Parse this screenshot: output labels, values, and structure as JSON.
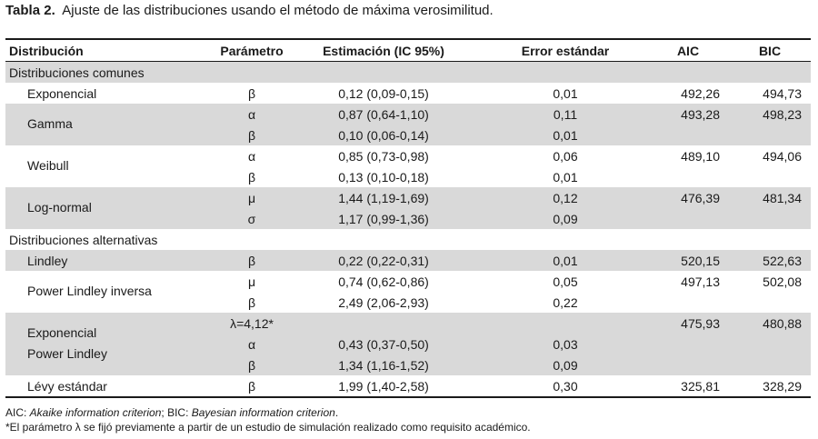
{
  "caption": {
    "label": "Tabla 2.",
    "text": "Ajuste de las distribuciones usando el método de máxima verosimilitud."
  },
  "header": {
    "distribucion": "Distribución",
    "parametro": "Parámetro",
    "estimacion": "Estimación (IC 95%)",
    "error": "Error estándar",
    "aic": "AIC",
    "bic": "BIC"
  },
  "sections": {
    "comunes": "Distribuciones comunes",
    "alternativas": "Distribuciones alternativas"
  },
  "rows": {
    "exponencial": {
      "name": "Exponencial",
      "param": "β",
      "est": "0,12 (0,09-0,15)",
      "se": "0,01",
      "aic": "492,26",
      "bic": "494,73"
    },
    "gamma": {
      "name": "Gamma",
      "aic": "493,28",
      "bic": "498,23",
      "p1": {
        "param": "α",
        "est": "0,87 (0,64-1,10)",
        "se": "0,11"
      },
      "p2": {
        "param": "β",
        "est": "0,10 (0,06-0,14)",
        "se": "0,01"
      }
    },
    "weibull": {
      "name": "Weibull",
      "aic": "489,10",
      "bic": "494,06",
      "p1": {
        "param": "α",
        "est": "0,85 (0,73-0,98)",
        "se": "0,06"
      },
      "p2": {
        "param": "β",
        "est": "0,13 (0,10-0,18)",
        "se": "0,01"
      }
    },
    "lognormal": {
      "name": "Log-normal",
      "aic": "476,39",
      "bic": "481,34",
      "p1": {
        "param": "μ",
        "est": "1,44 (1,19-1,69)",
        "se": "0,12"
      },
      "p2": {
        "param": "σ",
        "est": "1,17 (0,99-1,36)",
        "se": "0,09"
      }
    },
    "lindley": {
      "name": "Lindley",
      "param": "β",
      "est": "0,22 (0,22-0,31)",
      "se": "0,01",
      "aic": "520,15",
      "bic": "522,63"
    },
    "pli": {
      "name": "Power Lindley inversa",
      "aic": "497,13",
      "bic": "502,08",
      "p1": {
        "param": "μ",
        "est": "0,74 (0,62-0,86)",
        "se": "0,05"
      },
      "p2": {
        "param": "β",
        "est": "2,49 (2,06-2,93)",
        "se": "0,22"
      }
    },
    "epl": {
      "name1": "Exponencial",
      "name2": "Power Lindley",
      "aic": "475,93",
      "bic": "480,88",
      "p0": {
        "param": "λ=4,12*"
      },
      "p1": {
        "param": "α",
        "est": "0,43 (0,37-0,50)",
        "se": "0,03"
      },
      "p2": {
        "param": "β",
        "est": "1,34 (1,16-1,52)",
        "se": "0,09"
      }
    },
    "levy": {
      "name": "Lévy estándar",
      "param": "β",
      "est": "1,99 (1,40-2,58)",
      "se": "0,30",
      "aic": "325,81",
      "bic": "328,29"
    }
  },
  "notes": {
    "aic_label": "AIC: ",
    "aic_def": "Akaike information criterion",
    "bic_label": "; BIC: ",
    "bic_def": "Bayesian information criterion",
    "period": ".",
    "footnote": "*El parámetro λ se fijó previamente a partir de un estudio de simulación realizado como requisito académico."
  }
}
